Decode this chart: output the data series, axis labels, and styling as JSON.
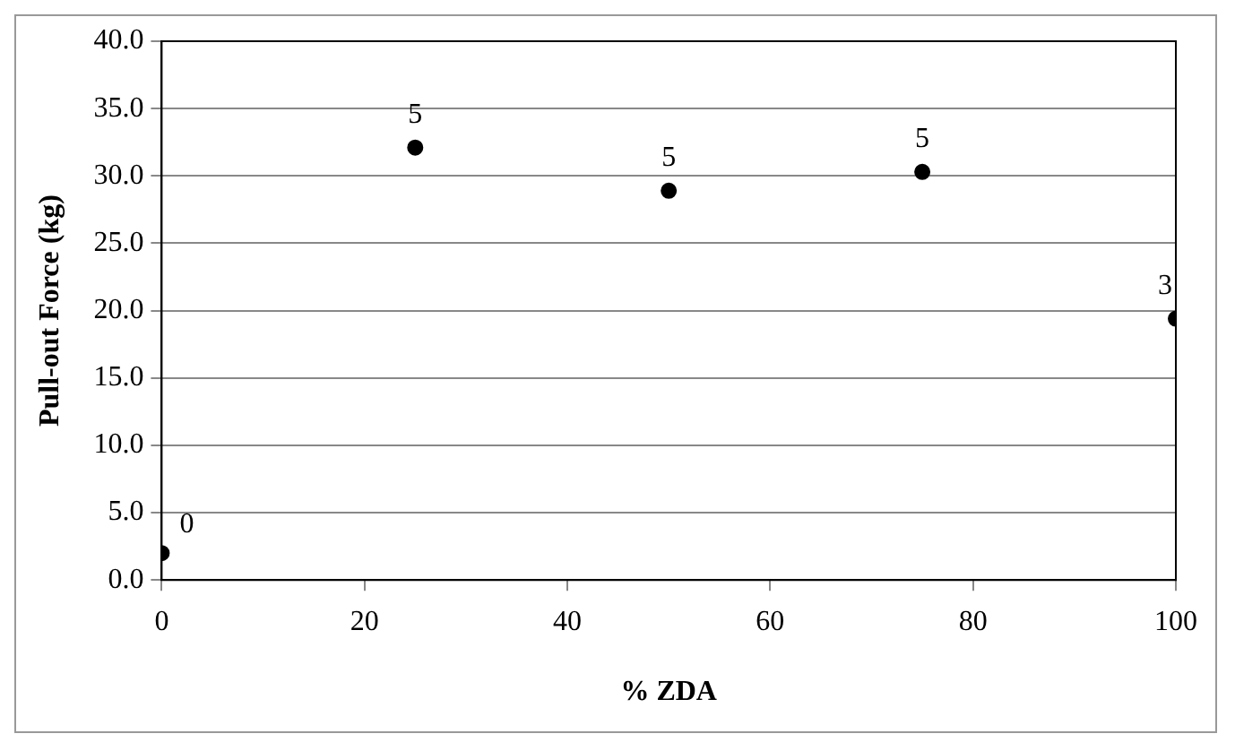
{
  "chart_data": {
    "type": "scatter",
    "xlabel": "% ZDA",
    "ylabel": "Pull-out Force (kg)",
    "x": [
      0,
      25,
      50,
      75,
      100
    ],
    "values": [
      2.0,
      32.1,
      28.9,
      30.3,
      19.4
    ],
    "color": "#000000",
    "marker": "circle",
    "xlim": [
      0,
      100
    ],
    "xticks": [
      0,
      20,
      40,
      60,
      80,
      100
    ],
    "ylim": [
      0,
      40
    ],
    "yticks": [
      {
        "value": 0,
        "label": "0.0"
      },
      {
        "value": 5,
        "label": "5.0"
      },
      {
        "value": 10,
        "label": "10.0"
      },
      {
        "value": 15,
        "label": "15.0"
      },
      {
        "value": 20,
        "label": "20.0"
      },
      {
        "value": 25,
        "label": "25.0"
      },
      {
        "value": 30,
        "label": "30.0"
      },
      {
        "value": 35,
        "label": "35.0"
      },
      {
        "value": 40,
        "label": "40.0"
      }
    ],
    "grid": "y",
    "annotations": [
      {
        "text": "0",
        "x": 0,
        "y": 2.0
      },
      {
        "text": "5",
        "x": 25,
        "y": 32.1
      },
      {
        "text": "5",
        "x": 50,
        "y": 28.9
      },
      {
        "text": "5",
        "x": 75,
        "y": 30.3
      },
      {
        "text": "3",
        "x": 100,
        "y": 19.4
      }
    ]
  }
}
